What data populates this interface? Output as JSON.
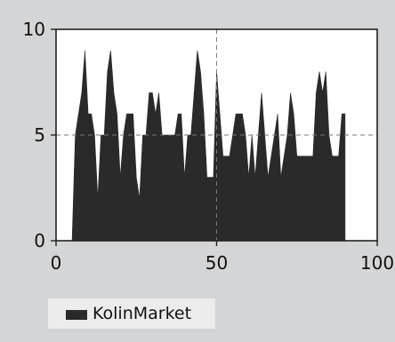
{
  "chart_data": {
    "type": "area",
    "title": "",
    "xlabel": "",
    "ylabel": "",
    "xlim": [
      0,
      100
    ],
    "ylim": [
      0,
      10
    ],
    "x_ticks": [
      0,
      50,
      100
    ],
    "y_ticks": [
      0,
      5,
      10
    ],
    "reference_lines": {
      "x": 50,
      "y": 5
    },
    "grid": false,
    "legend_position": "bottom-left",
    "series": [
      {
        "name": "KolinMarket",
        "color": "#2a2a2a",
        "x": [
          5,
          6,
          7,
          8,
          9,
          10,
          11,
          12,
          13,
          14,
          15,
          16,
          17,
          18,
          19,
          20,
          21,
          22,
          23,
          24,
          25,
          26,
          27,
          28,
          29,
          30,
          31,
          32,
          33,
          34,
          35,
          36,
          37,
          38,
          39,
          40,
          41,
          42,
          43,
          44,
          45,
          46,
          47,
          48,
          49,
          50,
          51,
          52,
          53,
          54,
          55,
          56,
          57,
          58,
          59,
          60,
          61,
          62,
          63,
          64,
          65,
          66,
          67,
          68,
          69,
          70,
          71,
          72,
          73,
          74,
          75,
          76,
          77,
          78,
          79,
          80,
          81,
          82,
          83,
          84,
          85,
          86,
          87,
          88,
          89,
          90
        ],
        "y": [
          0,
          5,
          6,
          7,
          9,
          6,
          6,
          5,
          2,
          5,
          5,
          8,
          9,
          7,
          6,
          3,
          5,
          6,
          6,
          6,
          3,
          2,
          5,
          5,
          7,
          7,
          6,
          7,
          5,
          5,
          5,
          5,
          5,
          6,
          6,
          3,
          5,
          5,
          7,
          9,
          8,
          6,
          3,
          3,
          3,
          8,
          6,
          4,
          4,
          4,
          5,
          6,
          6,
          6,
          5,
          3,
          5,
          3,
          5,
          7,
          5,
          3,
          4,
          5,
          6,
          3,
          4,
          5,
          7,
          6,
          4,
          4,
          4,
          4,
          4,
          4,
          7,
          8,
          7,
          8,
          5,
          4,
          4,
          4,
          6,
          6
        ]
      }
    ]
  }
}
